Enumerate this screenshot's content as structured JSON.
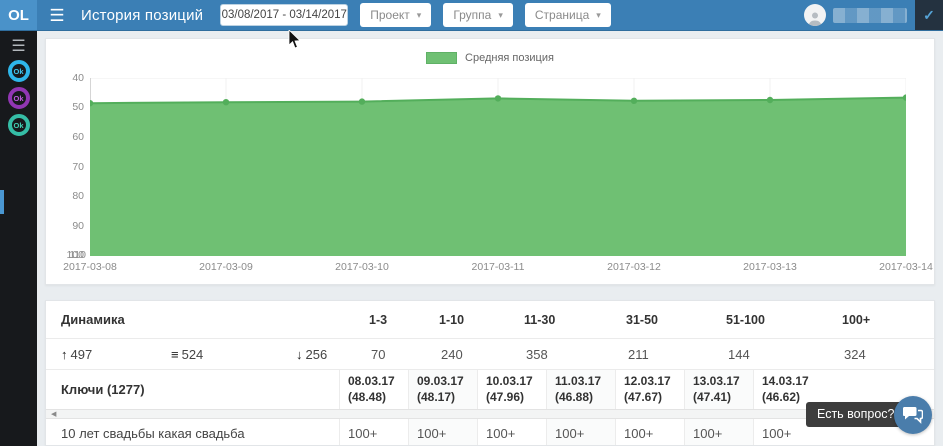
{
  "header": {
    "logo": "OL",
    "title": "История позиций",
    "date_range": "03/08/2017 - 03/14/2017",
    "dropdowns": [
      {
        "id": "project",
        "label": "Проект"
      },
      {
        "id": "group",
        "label": "Группа"
      },
      {
        "id": "page",
        "label": "Страница"
      }
    ],
    "check_label": "✓"
  },
  "sidebar": {
    "badges": [
      {
        "label": "Ok",
        "ring_color": "#2eb6ea",
        "text_color": "#3fc6ef"
      },
      {
        "label": "Ok",
        "ring_color": "#9136b3",
        "text_color": "#c05ce0"
      },
      {
        "label": "Ok",
        "ring_color": "#35bda6",
        "text_color": "#43d2b4"
      }
    ]
  },
  "chart_data": {
    "type": "area",
    "legend_label": "Средняя позиция",
    "legend_position": "top",
    "x": [
      "2017-03-08",
      "2017-03-09",
      "2017-03-10",
      "2017-03-11",
      "2017-03-12",
      "2017-03-13",
      "2017-03-14"
    ],
    "values": [
      48.48,
      48.17,
      47.96,
      46.88,
      47.67,
      47.41,
      46.62
    ],
    "y_axis_inverted": true,
    "ylim": [
      40,
      100
    ],
    "yticks": [
      40,
      50,
      60,
      70,
      80,
      90
    ],
    "y_bottom_overlap_labels": [
      "100",
      "110"
    ],
    "grid": true,
    "area_color": "#6fc073",
    "line_color": "#53ae5b"
  },
  "table": {
    "dynamics": {
      "label": "Динамика",
      "columns": [
        "1-3",
        "1-10",
        "11-30",
        "31-50",
        "51-100",
        "100+"
      ],
      "movers": [
        {
          "direction": "up",
          "value": "497"
        },
        {
          "direction": "same",
          "value": "524"
        },
        {
          "direction": "down",
          "value": "256"
        }
      ],
      "values": [
        "70",
        "240",
        "358",
        "211",
        "144",
        "324"
      ]
    },
    "keys": {
      "label": "Ключи (1277)",
      "date_columns": [
        {
          "date": "08.03.17",
          "avg": "(48.48)"
        },
        {
          "date": "09.03.17",
          "avg": "(48.17)"
        },
        {
          "date": "10.03.17",
          "avg": "(47.96)"
        },
        {
          "date": "11.03.17",
          "avg": "(46.88)"
        },
        {
          "date": "12.03.17",
          "avg": "(47.67)"
        },
        {
          "date": "13.03.17",
          "avg": "(47.41)"
        },
        {
          "date": "14.03.17",
          "avg": "(46.62)"
        }
      ],
      "rows": [
        {
          "keyword": "10 лет свадьбы какая свадьба",
          "values": [
            "100+",
            "100+",
            "100+",
            "100+",
            "100+",
            "100+",
            "100+"
          ]
        }
      ]
    }
  },
  "widgets": {
    "help_tooltip": "Есть вопрос?"
  }
}
